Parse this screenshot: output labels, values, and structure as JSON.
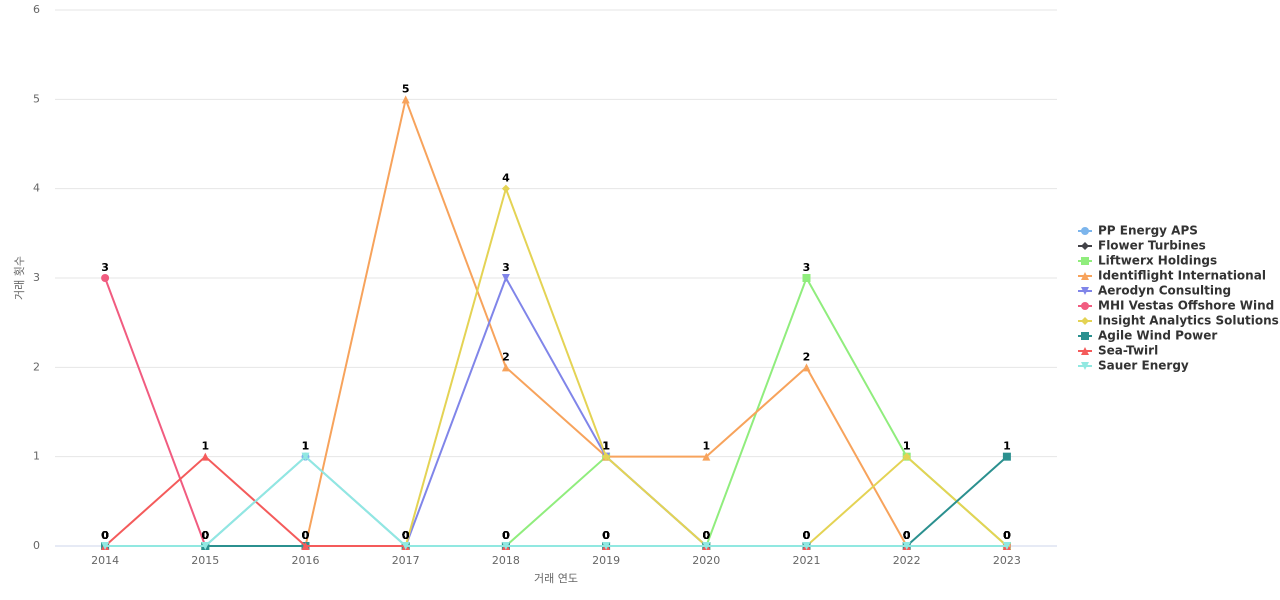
{
  "chart_data": {
    "type": "line",
    "x_label": "거래 연도",
    "y_label": "거래 횟수",
    "categories": [
      "2014",
      "2015",
      "2016",
      "2017",
      "2018",
      "2019",
      "2020",
      "2021",
      "2022",
      "2023"
    ],
    "ylim": [
      0,
      6
    ],
    "yticks": [
      0,
      1,
      2,
      3,
      4,
      5,
      6
    ],
    "grid": true,
    "legend": "right",
    "series": [
      {
        "name": "PP Energy APS",
        "color": "#7cb5ec",
        "marker": "circle",
        "values": [
          0,
          0,
          1,
          0,
          0,
          0,
          0,
          0,
          0,
          0
        ]
      },
      {
        "name": "Flower Turbines",
        "color": "#434348",
        "marker": "diamond",
        "values": [
          0,
          0,
          0,
          0,
          0,
          0,
          0,
          0,
          0,
          0
        ]
      },
      {
        "name": "Liftwerx Holdings",
        "color": "#90ed7d",
        "marker": "square",
        "values": [
          0,
          0,
          0,
          0,
          0,
          1,
          0,
          3,
          1,
          0
        ]
      },
      {
        "name": "Identiflight International",
        "color": "#f7a35c",
        "marker": "triangle",
        "values": [
          0,
          0,
          0,
          5,
          2,
          1,
          1,
          2,
          0,
          0
        ]
      },
      {
        "name": "Aerodyn Consulting",
        "color": "#8085e9",
        "marker": "triangle-down",
        "values": [
          0,
          0,
          0,
          0,
          3,
          1,
          0,
          0,
          0,
          0
        ]
      },
      {
        "name": "MHI Vestas Offshore Wind",
        "color": "#f15c80",
        "marker": "circle",
        "values": [
          3,
          0,
          0,
          0,
          0,
          0,
          0,
          0,
          0,
          0
        ]
      },
      {
        "name": "Insight Analytics Solutions...",
        "color": "#e4d354",
        "marker": "diamond",
        "values": [
          0,
          0,
          0,
          0,
          4,
          1,
          0,
          0,
          1,
          0
        ]
      },
      {
        "name": "Agile Wind Power",
        "color": "#2b908f",
        "marker": "square",
        "values": [
          0,
          0,
          0,
          0,
          0,
          0,
          0,
          0,
          0,
          1
        ]
      },
      {
        "name": "Sea-Twirl",
        "color": "#f45b5b",
        "marker": "triangle",
        "values": [
          0,
          1,
          0,
          0,
          0,
          0,
          0,
          0,
          0,
          0
        ]
      },
      {
        "name": "Sauer Energy",
        "color": "#91e8e1",
        "marker": "triangle-down",
        "values": [
          0,
          0,
          1,
          0,
          0,
          0,
          0,
          0,
          0,
          0
        ]
      }
    ]
  }
}
